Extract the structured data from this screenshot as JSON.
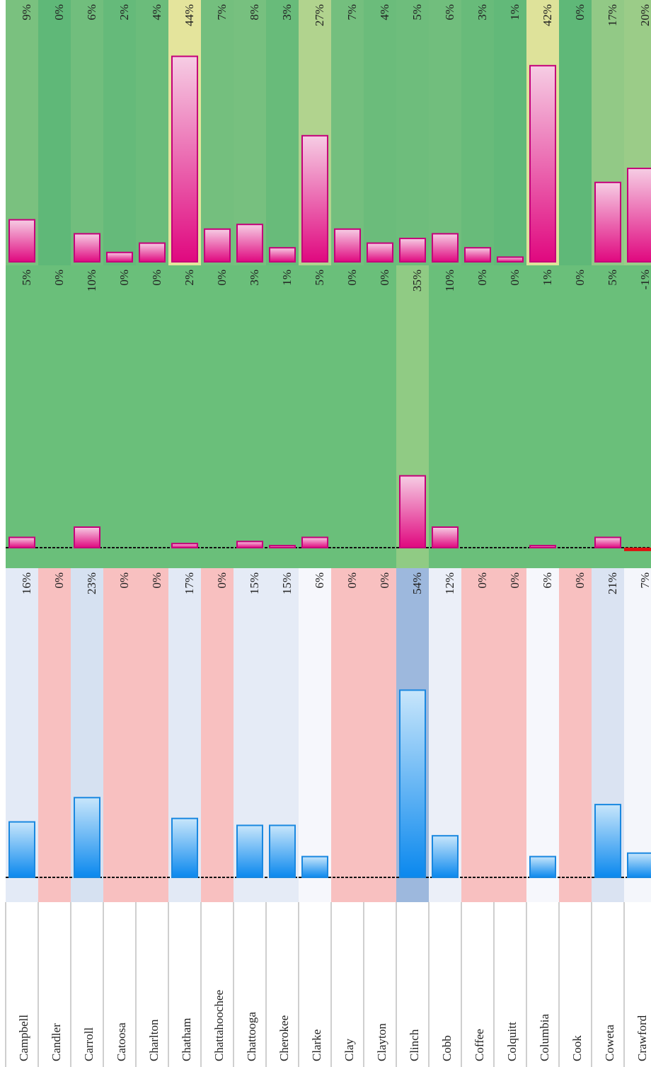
{
  "categories": [
    "Campbell",
    "Candler",
    "Carroll",
    "Catoosa",
    "Charlton",
    "Chatham",
    "Chattahoochee",
    "Chattooga",
    "Cherokee",
    "Clarke",
    "Clay",
    "Clayton",
    "Clinch",
    "Cobb",
    "Coffee",
    "Colquitt",
    "Columbia",
    "Cook",
    "Coweta",
    "Crawford"
  ],
  "panels": [
    {
      "values": [
        9,
        0,
        6,
        2,
        4,
        44,
        7,
        8,
        3,
        27,
        7,
        4,
        5,
        6,
        3,
        1,
        42,
        0,
        17,
        20
      ],
      "value_labels": [
        "9%",
        "0%",
        "6%",
        "2%",
        "4%",
        "44%",
        "7%",
        "8%",
        "3%",
        "27%",
        "7%",
        "4%",
        "5%",
        "6%",
        "3%",
        "1%",
        "42%",
        "0%",
        "17%",
        "20%"
      ]
    },
    {
      "values": [
        5,
        0,
        10,
        0,
        0,
        2,
        0,
        3,
        1,
        5,
        0,
        0,
        35,
        10,
        0,
        0,
        1,
        0,
        5,
        -1
      ],
      "value_labels": [
        "5%",
        "0%",
        "10%",
        "0%",
        "0%",
        "2%",
        "0%",
        "3%",
        "1%",
        "5%",
        "0%",
        "0%",
        "35%",
        "10%",
        "0%",
        "0%",
        "1%",
        "0%",
        "5%",
        "-1%"
      ]
    },
    {
      "values": [
        16,
        0,
        23,
        0,
        0,
        17,
        0,
        15,
        15,
        6,
        0,
        0,
        54,
        12,
        0,
        0,
        6,
        0,
        21,
        7
      ],
      "value_labels": [
        "16%",
        "0%",
        "23%",
        "0%",
        "0%",
        "17%",
        "0%",
        "15%",
        "15%",
        "6%",
        "0%",
        "0%",
        "54%",
        "12%",
        "0%",
        "0%",
        "6%",
        "0%",
        "21%",
        "7%"
      ]
    }
  ]
}
